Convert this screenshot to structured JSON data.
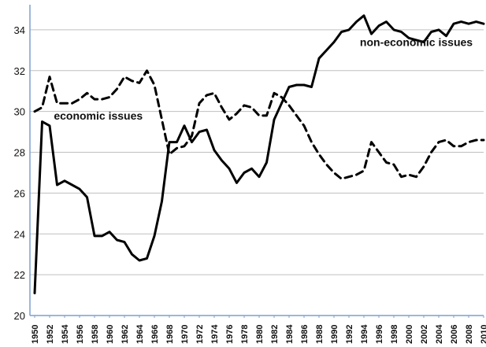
{
  "chart_data": {
    "type": "line",
    "x_ticks": [
      1950,
      1952,
      1954,
      1956,
      1958,
      1960,
      1962,
      1964,
      1966,
      1968,
      1970,
      1972,
      1974,
      1976,
      1978,
      1980,
      1982,
      1984,
      1986,
      1988,
      1990,
      1992,
      1994,
      1996,
      1998,
      2000,
      2002,
      2004,
      2006,
      2008,
      2010
    ],
    "ylim": [
      20,
      35
    ],
    "y_ticks": [
      20,
      22,
      24,
      26,
      28,
      30,
      32,
      34
    ],
    "grid": true,
    "annotations": [
      {
        "text": "non-economic issues",
        "x": 2001,
        "y": 33.2
      },
      {
        "text": "economic issues",
        "x": 1958.5,
        "y": 29.6
      }
    ],
    "series": [
      {
        "name": "non-economic issues",
        "style": "solid",
        "color": "#000000",
        "x": [
          1950,
          1951,
          1952,
          1953,
          1954,
          1955,
          1956,
          1957,
          1958,
          1959,
          1960,
          1961,
          1962,
          1963,
          1964,
          1965,
          1966,
          1967,
          1968,
          1969,
          1970,
          1971,
          1972,
          1973,
          1974,
          1975,
          1976,
          1977,
          1978,
          1979,
          1980,
          1981,
          1982,
          1983,
          1984,
          1985,
          1986,
          1987,
          1988,
          1989,
          1990,
          1991,
          1992,
          1993,
          1994,
          1995,
          1996,
          1997,
          1998,
          1999,
          2000,
          2001,
          2002,
          2003,
          2004,
          2005,
          2006,
          2007,
          2008,
          2009,
          2010
        ],
        "values": [
          21.1,
          29.5,
          29.3,
          26.4,
          26.6,
          26.4,
          26.2,
          25.8,
          23.9,
          23.9,
          24.1,
          23.7,
          23.6,
          23.0,
          22.7,
          22.8,
          23.9,
          25.6,
          28.5,
          28.5,
          29.3,
          28.5,
          29.0,
          29.1,
          28.1,
          27.6,
          27.2,
          26.5,
          27.0,
          27.2,
          26.8,
          27.5,
          29.6,
          30.4,
          31.2,
          31.3,
          31.3,
          31.2,
          32.6,
          33.0,
          33.4,
          33.9,
          34.0,
          34.4,
          34.7,
          33.8,
          34.2,
          34.4,
          34.0,
          33.9,
          33.6,
          33.5,
          33.4,
          33.9,
          34.0,
          33.7,
          34.3,
          34.4,
          34.3,
          34.4,
          34.3
        ]
      },
      {
        "name": "economic issues",
        "style": "dashed",
        "color": "#000000",
        "x": [
          1950,
          1951,
          1952,
          1953,
          1954,
          1955,
          1956,
          1957,
          1958,
          1959,
          1960,
          1961,
          1962,
          1963,
          1964,
          1965,
          1966,
          1967,
          1968,
          1969,
          1970,
          1971,
          1972,
          1973,
          1974,
          1975,
          1976,
          1977,
          1978,
          1979,
          1980,
          1981,
          1982,
          1983,
          1984,
          1985,
          1986,
          1987,
          1988,
          1989,
          1990,
          1991,
          1992,
          1993,
          1994,
          1995,
          1996,
          1997,
          1998,
          1999,
          2000,
          2001,
          2002,
          2003,
          2004,
          2005,
          2006,
          2007,
          2008,
          2009,
          2010
        ],
        "values": [
          30.0,
          30.2,
          31.7,
          30.4,
          30.4,
          30.4,
          30.6,
          30.9,
          30.6,
          30.6,
          30.7,
          31.1,
          31.7,
          31.5,
          31.4,
          32.0,
          31.3,
          29.6,
          27.9,
          28.2,
          28.3,
          28.8,
          30.4,
          30.8,
          30.9,
          30.2,
          29.6,
          29.9,
          30.3,
          30.2,
          29.8,
          29.8,
          30.9,
          30.7,
          30.3,
          29.8,
          29.3,
          28.5,
          27.9,
          27.4,
          27.0,
          26.7,
          26.8,
          26.9,
          27.1,
          28.5,
          28.0,
          27.5,
          27.4,
          26.8,
          26.9,
          26.8,
          27.3,
          28.0,
          28.5,
          28.6,
          28.3,
          28.3,
          28.5,
          28.6,
          28.6
        ]
      }
    ]
  }
}
